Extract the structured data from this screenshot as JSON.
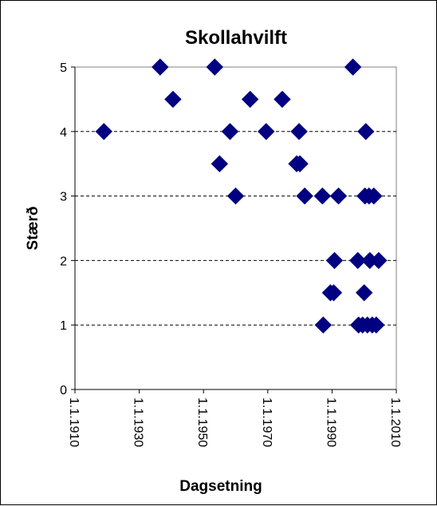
{
  "chart_data": {
    "type": "scatter",
    "title": "Skollahvilft",
    "xlabel": "Dagsetning",
    "ylabel": "Stærð",
    "xlim": [
      "1.1.1910",
      "1.1.2010"
    ],
    "ylim": [
      0,
      5
    ],
    "x_ticks": [
      "1.1.1910",
      "1.1.1930",
      "1.1.1950",
      "1.1.1970",
      "1.1.1990",
      "1.1.2010"
    ],
    "y_ticks": [
      "0",
      "1",
      "2",
      "3",
      "4",
      "5"
    ],
    "grid": "horizontal dashed",
    "legend": "none",
    "marker": "diamond",
    "colors": {
      "marker": "#000080",
      "grid": "#000000"
    },
    "points": [
      {
        "x": "1919-01-01",
        "y": 4
      },
      {
        "x": "1936-07-01",
        "y": 5
      },
      {
        "x": "1940-07-01",
        "y": 4.5
      },
      {
        "x": "1953-07-01",
        "y": 5
      },
      {
        "x": "1955-01-01",
        "y": 3.5
      },
      {
        "x": "1958-04-01",
        "y": 4
      },
      {
        "x": "1960-01-01",
        "y": 3
      },
      {
        "x": "1964-07-01",
        "y": 4.5
      },
      {
        "x": "1969-07-01",
        "y": 4
      },
      {
        "x": "1974-07-01",
        "y": 4.5
      },
      {
        "x": "1979-01-01",
        "y": 3.5
      },
      {
        "x": "1980-01-01",
        "y": 3.5
      },
      {
        "x": "1979-10-01",
        "y": 4
      },
      {
        "x": "1981-07-01",
        "y": 3
      },
      {
        "x": "1987-01-01",
        "y": 3
      },
      {
        "x": "1987-04-01",
        "y": 1
      },
      {
        "x": "1989-07-01",
        "y": 1.5
      },
      {
        "x": "1990-07-01",
        "y": 1.5
      },
      {
        "x": "1990-10-01",
        "y": 2
      },
      {
        "x": "1992-01-01",
        "y": 3
      },
      {
        "x": "1996-07-01",
        "y": 5
      },
      {
        "x": "1998-01-01",
        "y": 2
      },
      {
        "x": "1998-04-01",
        "y": 1
      },
      {
        "x": "1999-07-01",
        "y": 1
      },
      {
        "x": "2000-01-01",
        "y": 1.5
      },
      {
        "x": "2000-04-01",
        "y": 3
      },
      {
        "x": "2000-07-01",
        "y": 4
      },
      {
        "x": "2001-01-01",
        "y": 1
      },
      {
        "x": "2001-07-01",
        "y": 3
      },
      {
        "x": "2001-10-01",
        "y": 2
      },
      {
        "x": "2002-07-01",
        "y": 1
      },
      {
        "x": "2003-01-01",
        "y": 3
      },
      {
        "x": "2003-10-01",
        "y": 1
      },
      {
        "x": "2004-07-01",
        "y": 2
      }
    ]
  }
}
